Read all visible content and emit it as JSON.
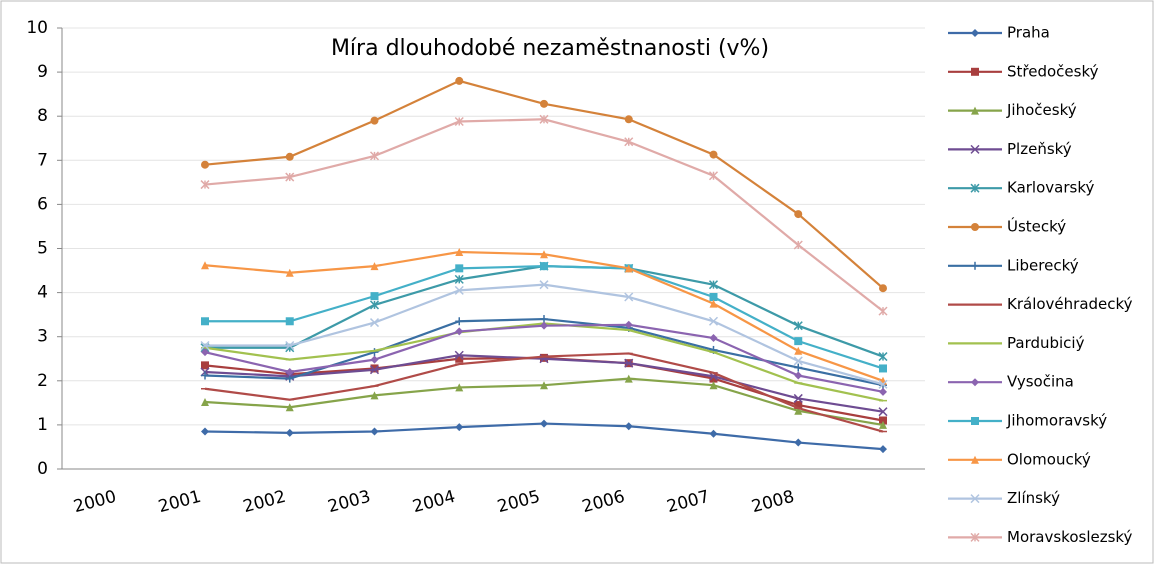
{
  "chart_data": {
    "type": "line",
    "title": "Míra dlouhodobé nezaměstnanosti (v%)",
    "categories": [
      "2000",
      "2001",
      "2002",
      "2003",
      "2004",
      "2005",
      "2006",
      "2007",
      "2008"
    ],
    "ylim": [
      0,
      10
    ],
    "yticks": [
      0,
      1,
      2,
      3,
      4,
      5,
      6,
      7,
      8,
      9,
      10
    ],
    "grid": true,
    "legend": "right",
    "series": [
      {
        "name": "Praha",
        "color": "#3e6ba8",
        "marker": "diamond",
        "values": [
          0.85,
          0.82,
          0.85,
          0.95,
          1.03,
          0.97,
          0.8,
          0.6,
          0.45
        ]
      },
      {
        "name": "Středočeský",
        "color": "#a83e3e",
        "marker": "square",
        "values": [
          2.35,
          2.15,
          2.28,
          2.5,
          2.52,
          2.4,
          2.05,
          1.45,
          1.1
        ]
      },
      {
        "name": "Jihočeský",
        "color": "#86a44a",
        "marker": "triangle",
        "values": [
          1.52,
          1.4,
          1.67,
          1.85,
          1.9,
          2.05,
          1.9,
          1.32,
          1.0
        ]
      },
      {
        "name": "Plzeňský",
        "color": "#6e4c92",
        "marker": "x",
        "values": [
          2.2,
          2.1,
          2.25,
          2.58,
          2.5,
          2.4,
          2.1,
          1.6,
          1.3
        ]
      },
      {
        "name": "Karlovarský",
        "color": "#3d9aa8",
        "marker": "star",
        "values": [
          2.75,
          2.75,
          3.72,
          4.3,
          4.6,
          4.55,
          4.18,
          3.25,
          2.55
        ]
      },
      {
        "name": "Ústecký",
        "color": "#d4823a",
        "marker": "circle",
        "values": [
          6.9,
          7.08,
          7.9,
          8.8,
          8.28,
          7.93,
          7.13,
          5.78,
          4.1
        ]
      },
      {
        "name": "Liberecký",
        "color": "#3a6fa3",
        "marker": "plus",
        "values": [
          2.12,
          2.05,
          2.65,
          3.35,
          3.4,
          3.2,
          2.7,
          2.3,
          1.9
        ]
      },
      {
        "name": "Královéhradecký",
        "color": "#b04b48",
        "marker": "dash",
        "values": [
          1.82,
          1.57,
          1.88,
          2.38,
          2.55,
          2.62,
          2.18,
          1.38,
          0.85
        ]
      },
      {
        "name": "Pardubiciý",
        "color": "#a2c14f",
        "marker": "dash",
        "values": [
          2.75,
          2.48,
          2.68,
          3.1,
          3.3,
          3.15,
          2.65,
          1.95,
          1.55
        ]
      },
      {
        "name": "Vysočina",
        "color": "#8b64b0",
        "marker": "diamond",
        "values": [
          2.65,
          2.2,
          2.48,
          3.12,
          3.25,
          3.27,
          2.97,
          2.12,
          1.75
        ]
      },
      {
        "name": "Jihomoravský",
        "color": "#44b0c8",
        "marker": "square",
        "values": [
          3.35,
          3.35,
          3.92,
          4.55,
          4.6,
          4.55,
          3.9,
          2.9,
          2.28
        ]
      },
      {
        "name": "Olomoucký",
        "color": "#f79646",
        "marker": "triangle",
        "values": [
          4.62,
          4.45,
          4.6,
          4.92,
          4.87,
          4.55,
          3.75,
          2.68,
          2.0
        ]
      },
      {
        "name": "Zlínský",
        "color": "#b0c4e0",
        "marker": "x",
        "values": [
          2.8,
          2.8,
          3.32,
          4.05,
          4.18,
          3.9,
          3.35,
          2.45,
          1.92
        ]
      },
      {
        "name": "Moravskoslezský",
        "color": "#e0aaa8",
        "marker": "star",
        "values": [
          6.45,
          6.62,
          7.1,
          7.88,
          7.93,
          7.42,
          6.65,
          5.08,
          3.58
        ]
      }
    ]
  }
}
